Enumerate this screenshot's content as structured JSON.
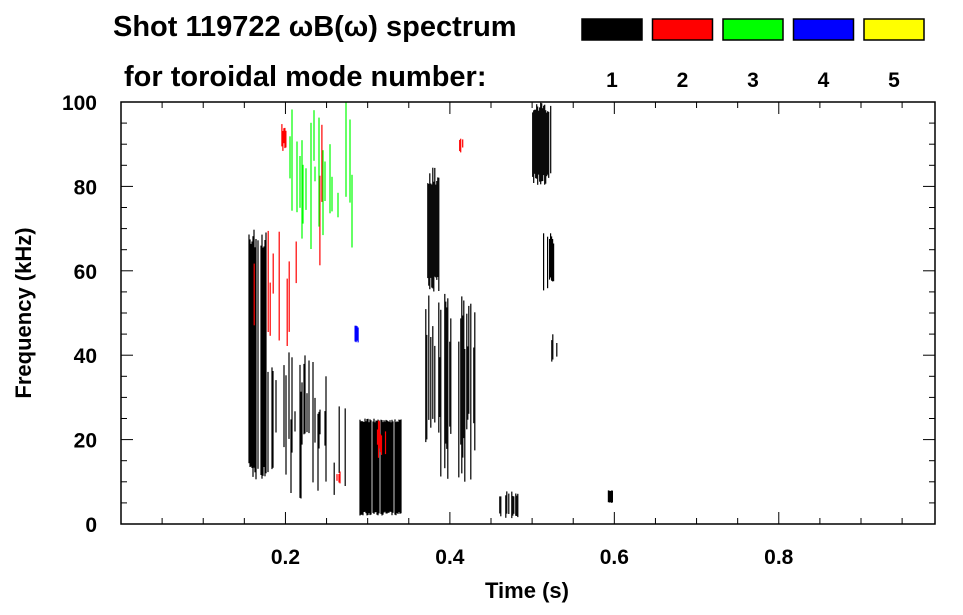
{
  "chart_data": {
    "type": "heatmap",
    "title": "Shot 119722 ωB(ω) spectrum",
    "subtitle": "for toroidal mode number:",
    "xlabel": "Time (s)",
    "ylabel": "Frequency (kHz)",
    "xlim": [
      0,
      0.99
    ],
    "ylim": [
      0,
      100
    ],
    "xticks": [
      "0.2",
      "0.4",
      "0.6",
      "0.8"
    ],
    "xtick_values": [
      0.2,
      0.4,
      0.6,
      0.8
    ],
    "yticks": [
      "0",
      "20",
      "40",
      "60",
      "80",
      "100"
    ],
    "ytick_values": [
      0,
      20,
      40,
      60,
      80,
      100
    ],
    "legend": [
      {
        "label": "1",
        "color": "#000000"
      },
      {
        "label": "2",
        "color": "#ff0000"
      },
      {
        "label": "3",
        "color": "#00ff00"
      },
      {
        "label": "4",
        "color": "#0000ff"
      },
      {
        "label": "5",
        "color": "#ffff00"
      }
    ],
    "features": [
      {
        "mode": 1,
        "t": [
          0.155,
          0.178
        ],
        "f": [
          10,
          70
        ],
        "density": 0.9
      },
      {
        "mode": 1,
        "t": [
          0.178,
          0.25
        ],
        "f": [
          6,
          42
        ],
        "density": 0.4
      },
      {
        "mode": 1,
        "t": [
          0.25,
          0.28
        ],
        "f": [
          2,
          30
        ],
        "density": 0.3
      },
      {
        "mode": 1,
        "t": [
          0.29,
          0.34
        ],
        "f": [
          2,
          25
        ],
        "density": 0.95
      },
      {
        "mode": 1,
        "t": [
          0.37,
          0.387
        ],
        "f": [
          55,
          85
        ],
        "density": 0.8
      },
      {
        "mode": 1,
        "t": [
          0.37,
          0.43
        ],
        "f": [
          10,
          55
        ],
        "density": 0.55
      },
      {
        "mode": 1,
        "t": [
          0.46,
          0.482
        ],
        "f": [
          1,
          8
        ],
        "density": 0.7
      },
      {
        "mode": 1,
        "t": [
          0.5,
          0.522
        ],
        "f": [
          80,
          100
        ],
        "density": 0.8
      },
      {
        "mode": 1,
        "t": [
          0.512,
          0.527
        ],
        "f": [
          55,
          70
        ],
        "density": 0.7
      },
      {
        "mode": 1,
        "t": [
          0.522,
          0.53
        ],
        "f": [
          38,
          45
        ],
        "density": 0.6
      },
      {
        "mode": 1,
        "t": [
          0.592,
          0.598
        ],
        "f": [
          5,
          8
        ],
        "density": 0.9
      },
      {
        "mode": 2,
        "t": [
          0.16,
          0.22
        ],
        "f": [
          40,
          70
        ],
        "density": 0.2
      },
      {
        "mode": 2,
        "t": [
          0.195,
          0.2
        ],
        "f": [
          88,
          95
        ],
        "density": 0.6
      },
      {
        "mode": 2,
        "t": [
          0.24,
          0.25
        ],
        "f": [
          60,
          95
        ],
        "density": 0.3
      },
      {
        "mode": 2,
        "t": [
          0.31,
          0.335
        ],
        "f": [
          15,
          25
        ],
        "density": 0.3
      },
      {
        "mode": 2,
        "t": [
          0.262,
          0.27
        ],
        "f": [
          9,
          13
        ],
        "density": 0.6
      },
      {
        "mode": 2,
        "t": [
          0.41,
          0.415
        ],
        "f": [
          88,
          92
        ],
        "density": 0.6
      },
      {
        "mode": 3,
        "t": [
          0.2,
          0.29
        ],
        "f": [
          65,
          100
        ],
        "density": 0.2
      },
      {
        "mode": 4,
        "t": [
          0.284,
          0.288
        ],
        "f": [
          43,
          47
        ],
        "density": 0.8
      }
    ]
  }
}
